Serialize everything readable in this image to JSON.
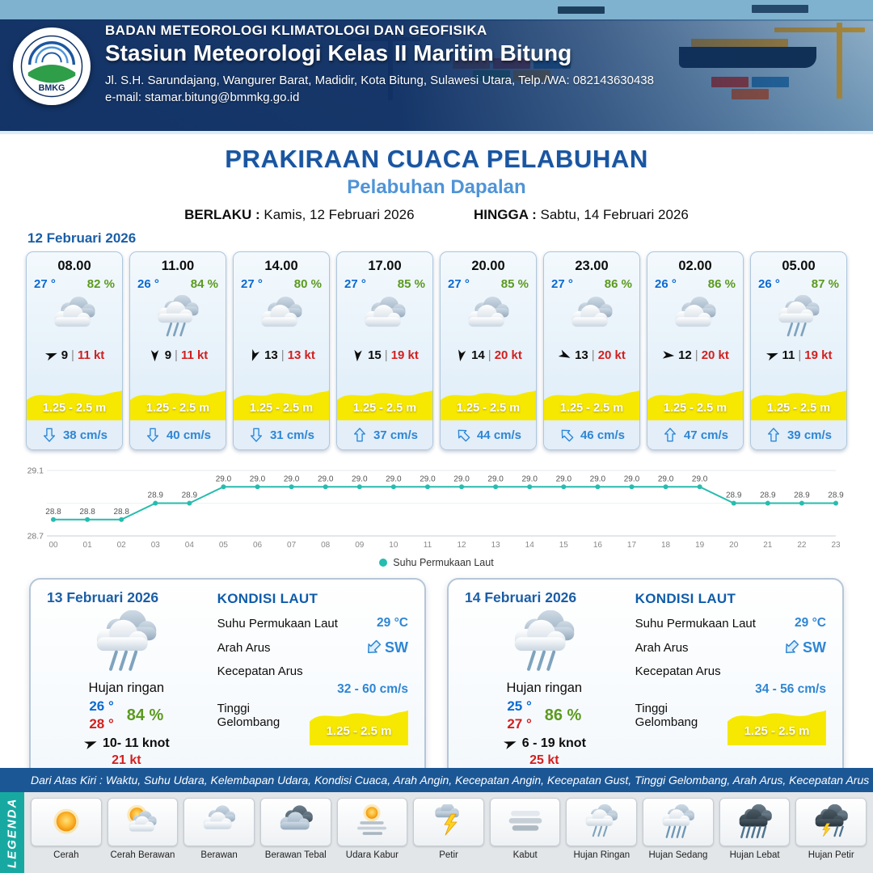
{
  "header": {
    "agency": "BADAN METEOROLOGI KLIMATOLOGI DAN GEOFISIKA",
    "station": "Stasiun Meteorologi Kelas II Maritim Bitung",
    "address": "Jl. S.H. Sarundajang, Wangurer Barat, Madidir, Kota Bitung, Sulawesi Utara, Telp./WA: 082143630438",
    "email": "e-mail: stamar.bitung@bmmkg.go.id",
    "logo_text": "BMKG"
  },
  "title": {
    "main": "PRAKIRAAN CUACA PELABUHAN",
    "subtitle": "Pelabuhan Dapalan",
    "berlaku_label": "BERLAKU :",
    "berlaku_value": "Kamis, 12 Februari 2026",
    "hingga_label": "HINGGA :",
    "hingga_value": "Sabtu, 14 Februari 2026"
  },
  "forecast": {
    "date": "12 Februari 2026",
    "cards": [
      {
        "time": "08.00",
        "temp": "27 °",
        "humidity": "82 %",
        "icon": "berawan",
        "wind_dir_deg": 70,
        "wind_speed": "9",
        "gust": "11 kt",
        "wave": "1.25 - 2.5 m",
        "current_dir_deg": 180,
        "current": "38 cm/s"
      },
      {
        "time": "11.00",
        "temp": "26 °",
        "humidity": "84 %",
        "icon": "hujan-ringan",
        "wind_dir_deg": 180,
        "wind_speed": "9",
        "gust": "11 kt",
        "wave": "1.25 - 2.5 m",
        "current_dir_deg": 180,
        "current": "40 cm/s"
      },
      {
        "time": "14.00",
        "temp": "27 °",
        "humidity": "80 %",
        "icon": "berawan",
        "wind_dir_deg": 200,
        "wind_speed": "13",
        "gust": "13 kt",
        "wave": "1.25 - 2.5 m",
        "current_dir_deg": 180,
        "current": "31 cm/s"
      },
      {
        "time": "17.00",
        "temp": "27 °",
        "humidity": "85 %",
        "icon": "berawan",
        "wind_dir_deg": 185,
        "wind_speed": "15",
        "gust": "19 kt",
        "wave": "1.25 - 2.5 m",
        "current_dir_deg": 0,
        "current": "37 cm/s"
      },
      {
        "time": "20.00",
        "temp": "27 °",
        "humidity": "85 %",
        "icon": "berawan",
        "wind_dir_deg": 190,
        "wind_speed": "14",
        "gust": "20 kt",
        "wave": "1.25 - 2.5 m",
        "current_dir_deg": 315,
        "current": "44 cm/s"
      },
      {
        "time": "23.00",
        "temp": "27 °",
        "humidity": "86 %",
        "icon": "berawan",
        "wind_dir_deg": 115,
        "wind_speed": "13",
        "gust": "20 kt",
        "wave": "1.25 - 2.5 m",
        "current_dir_deg": 315,
        "current": "46 cm/s"
      },
      {
        "time": "02.00",
        "temp": "26 °",
        "humidity": "86 %",
        "icon": "berawan",
        "wind_dir_deg": 95,
        "wind_speed": "12",
        "gust": "20 kt",
        "wave": "1.25 - 2.5 m",
        "current_dir_deg": 0,
        "current": "47 cm/s"
      },
      {
        "time": "05.00",
        "temp": "26 °",
        "humidity": "87 %",
        "icon": "hujan-ringan",
        "wind_dir_deg": 70,
        "wind_speed": "11",
        "gust": "19 kt",
        "wave": "1.25 - 2.5 m",
        "current_dir_deg": 0,
        "current": "39 cm/s"
      }
    ]
  },
  "chart_data": {
    "type": "line",
    "legend_label": "Suhu Permukaan Laut",
    "x": [
      "00",
      "01",
      "02",
      "03",
      "04",
      "05",
      "06",
      "07",
      "08",
      "09",
      "10",
      "11",
      "12",
      "13",
      "14",
      "15",
      "16",
      "17",
      "18",
      "19",
      "20",
      "21",
      "22",
      "23"
    ],
    "values": [
      28.8,
      28.8,
      28.8,
      28.9,
      28.9,
      29.0,
      29.0,
      29.0,
      29.0,
      29.0,
      29.0,
      29.0,
      29.0,
      29.0,
      29.0,
      29.0,
      29.0,
      29.0,
      29.0,
      29.0,
      28.9,
      28.9,
      28.9,
      28.9
    ],
    "ylim": [
      28.7,
      29.1
    ],
    "line_color": "#27bcae",
    "grid": true,
    "legend_position": "bottom"
  },
  "daily_labels": {
    "title": "KONDISI LAUT",
    "sst": "Suhu Permukaan Laut",
    "arah": "Arah Arus",
    "kecepatan": "Kecepatan Arus",
    "tinggi": "Tinggi Gelombang"
  },
  "daily": [
    {
      "date": "13 Februari 2026",
      "icon": "hujan-ringan",
      "condition": "Hujan ringan",
      "temp_min": "26 °",
      "temp_max": "28 °",
      "humidity": "84 %",
      "wind_dir_deg": 70,
      "wind": "10- 11 knot",
      "gust": "21 kt",
      "sst": "29 °C",
      "current_dir": "SW",
      "current_dir_deg": 225,
      "current_speed": "32 - 60 cm/s",
      "wave": "1.25 - 2.5 m"
    },
    {
      "date": "14 Februari 2026",
      "icon": "hujan-ringan",
      "condition": "Hujan ringan",
      "temp_min": "25 °",
      "temp_max": "27 °",
      "humidity": "86 %",
      "wind_dir_deg": 70,
      "wind": "6 - 19 knot",
      "gust": "25 kt",
      "sst": "29 °C",
      "current_dir": "SW",
      "current_dir_deg": 225,
      "current_speed": "34 - 56 cm/s",
      "wave": "1.25 - 2.5 m"
    }
  ],
  "legend": {
    "note": "Dari Atas Kiri : Waktu, Suhu Udara, Kelembapan Udara, Kondisi Cuaca, Arah Angin, Kecepatan Angin, Kecepatan Gust, Tinggi Gelombang, Arah Arus, Kecepatan Arus",
    "title": "LEGENDA",
    "items": [
      {
        "label": "Cerah",
        "icon": "cerah"
      },
      {
        "label": "Cerah Berawan",
        "icon": "cerah-berawan"
      },
      {
        "label": "Berawan",
        "icon": "berawan"
      },
      {
        "label": "Berawan Tebal",
        "icon": "berawan-tebal"
      },
      {
        "label": "Udara Kabur",
        "icon": "udara-kabur"
      },
      {
        "label": "Petir",
        "icon": "petir"
      },
      {
        "label": "Kabut",
        "icon": "kabut"
      },
      {
        "label": "Hujan Ringan",
        "icon": "hujan-ringan"
      },
      {
        "label": "Hujan Sedang",
        "icon": "hujan-sedang"
      },
      {
        "label": "Hujan Lebat",
        "icon": "hujan-lebat"
      },
      {
        "label": "Hujan Petir",
        "icon": "hujan-petir"
      }
    ]
  },
  "colors": {
    "navy": "#103064",
    "accent_blue": "#1a55a0",
    "subtitle_blue": "#4f94d8",
    "temp_blue": "#0a6ad2",
    "humidity_green": "#5b9a1e",
    "gust_red": "#d21f1f",
    "wave_yellow": "#f6e800",
    "current_blue": "#2e86d4",
    "chart_teal": "#27bcae",
    "legend_teal": "#17a9a1"
  }
}
